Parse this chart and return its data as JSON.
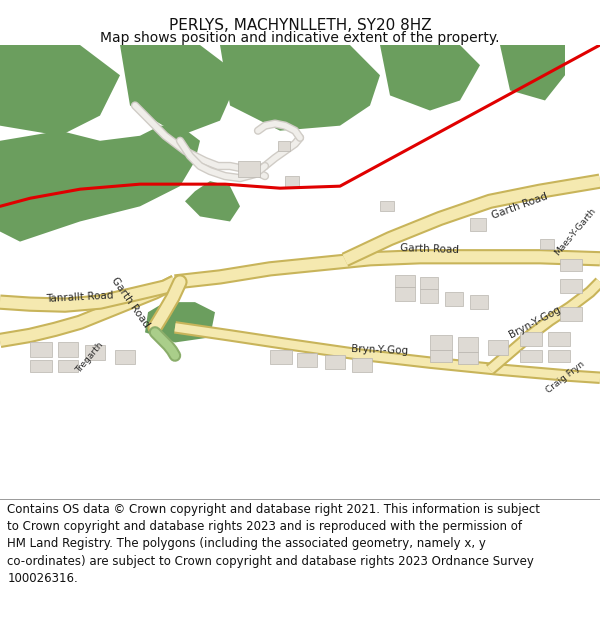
{
  "title": "PERLYS, MACHYNLLETH, SY20 8HZ",
  "subtitle": "Map shows position and indicative extent of the property.",
  "footer_lines": [
    "Contains OS data © Crown copyright and database right 2021. This information is subject",
    "to Crown copyright and database rights 2023 and is reproduced with the permission of",
    "HM Land Registry. The polygons (including the associated geometry, namely x, y",
    "co-ordinates) are subject to Crown copyright and database rights 2023 Ordnance Survey",
    "100026316."
  ],
  "title_fontsize": 11,
  "subtitle_fontsize": 10,
  "footer_fontsize": 8.5,
  "figure_bg": "#ffffff",
  "map_bg": "#f5f3ef",
  "green_color": "#6b9e5e",
  "road_fill": "#f5e9b0",
  "road_outline": "#c8b45a",
  "path_fill": "#f0eeea",
  "path_outline": "#d0ccc6",
  "building_fill": "#dedad4",
  "building_outline": "#b8b4ae",
  "red_line_color": "#e00000"
}
